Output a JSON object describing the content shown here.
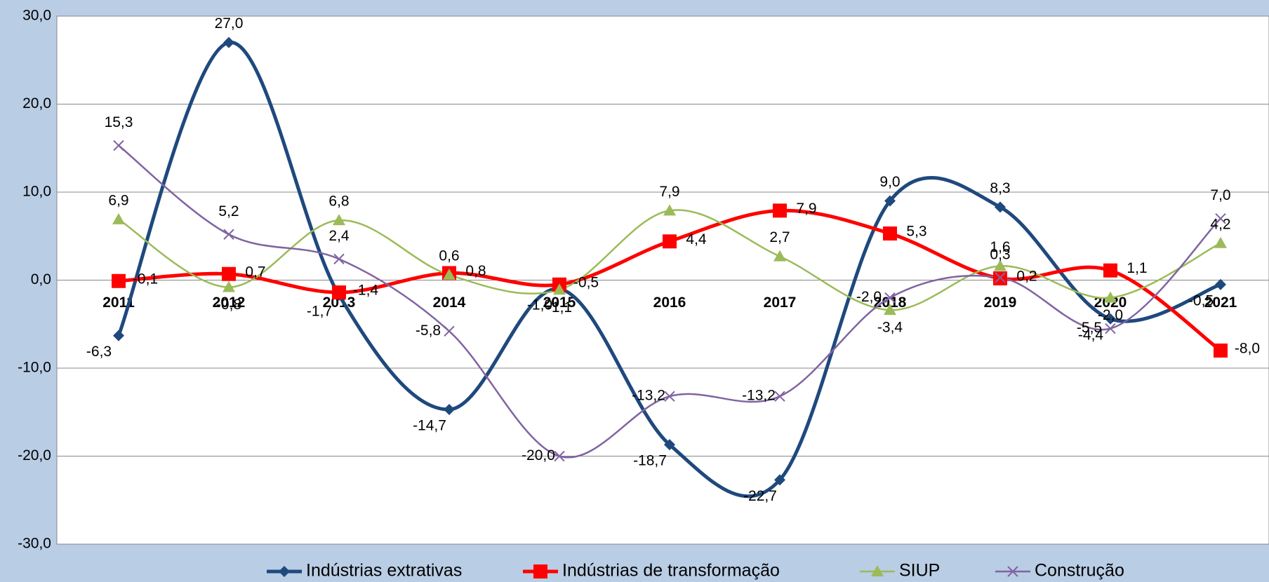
{
  "chart_data": {
    "type": "line",
    "categories": [
      "2011",
      "2012",
      "2013",
      "2014",
      "2015",
      "2016",
      "2017",
      "2018",
      "2019",
      "2020",
      "2021"
    ],
    "series": [
      {
        "name": "Indústrias extrativas",
        "color": "#1f497d",
        "marker": "diamond",
        "values": [
          -6.3,
          27.0,
          -1.7,
          -14.7,
          -1.0,
          -18.7,
          -22.7,
          9.0,
          8.3,
          -4.4,
          -0.5
        ],
        "value_labels": [
          "-6,3",
          "27,0",
          "-1,7",
          "-14,7",
          "-1,0",
          "-18,7",
          "-22,7",
          "9,0",
          "8,3",
          "-4,4",
          "-0,5"
        ]
      },
      {
        "name": "Indústrias de transformação",
        "color": "#ff0000",
        "marker": "square",
        "values": [
          -0.1,
          0.7,
          -1.4,
          0.8,
          -0.5,
          4.4,
          7.9,
          5.3,
          0.2,
          1.1,
          -8.0
        ],
        "value_labels": [
          "-0,1",
          "0,7",
          "-1,4",
          "0,8",
          "-0,5",
          "4,4",
          "7,9",
          "5,3",
          "0,2",
          "1,1",
          "-8,0"
        ]
      },
      {
        "name": "SIUP",
        "color": "#9bbb59",
        "marker": "triangle",
        "values": [
          6.9,
          -0.8,
          6.8,
          0.6,
          -1.1,
          7.9,
          2.7,
          -3.4,
          1.6,
          -2.0,
          4.2
        ],
        "value_labels": [
          "6,9",
          "-0,8",
          "6,8",
          "0,6",
          "-1,1",
          "7,9",
          "2,7",
          "-3,4",
          "1,6",
          "-2,0",
          "4,2"
        ]
      },
      {
        "name": "Construção",
        "color": "#8064a2",
        "marker": "x",
        "values": [
          15.3,
          5.2,
          2.4,
          -5.8,
          -20.0,
          -13.2,
          -13.2,
          -2.0,
          0.3,
          -5.5,
          7.0
        ],
        "value_labels": [
          "15,3",
          "5,2",
          "2,4",
          "-5,8",
          "-20,0",
          "-13,2",
          "-13,2",
          "-2,0",
          "0,3",
          "-5,5",
          "7,0"
        ]
      }
    ],
    "ylim": [
      -30,
      30
    ],
    "yticks": [
      {
        "value": -30,
        "label": "-30,0"
      },
      {
        "value": -20,
        "label": "-20,0"
      },
      {
        "value": -10,
        "label": "-10,0"
      },
      {
        "value": 0,
        "label": "0,0"
      },
      {
        "value": 10,
        "label": "10,0"
      },
      {
        "value": 20,
        "label": "20,0"
      },
      {
        "value": 30,
        "label": "30,0"
      }
    ],
    "grid": true,
    "legend": "bottom"
  }
}
